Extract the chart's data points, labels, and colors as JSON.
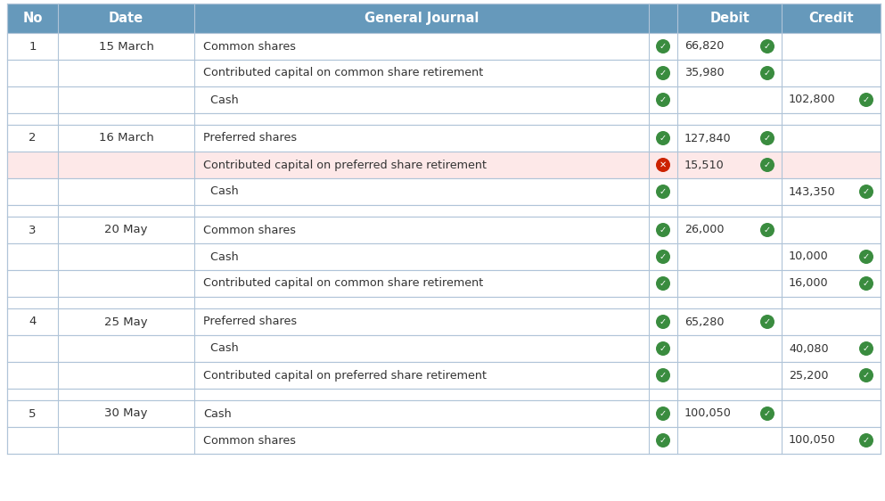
{
  "header_bg": "#6699bb",
  "header_text_color": "#ffffff",
  "row_bg_normal": "#ffffff",
  "row_bg_alt": "#f5f5f5",
  "row_bg_highlighted": "#fde8e8",
  "grid_color": "#b0c4d8",
  "text_color": "#333333",
  "check_green": "#3a8c3f",
  "check_red": "#cc2200",
  "fig_width": 9.93,
  "fig_height": 5.62,
  "dpi": 100,
  "entries": [
    {
      "no": "1",
      "date": "15 March",
      "rows": [
        {
          "desc": "Common shares",
          "icon": "green",
          "debit": "66,820",
          "debit_icon": "green",
          "credit": "",
          "credit_icon": null,
          "highlight": false
        },
        {
          "desc": "Contributed capital on common share retirement",
          "icon": "green",
          "debit": "35,980",
          "debit_icon": "green",
          "credit": "",
          "credit_icon": null,
          "highlight": false
        },
        {
          "desc": "  Cash",
          "icon": "green",
          "debit": "",
          "debit_icon": null,
          "credit": "102,800",
          "credit_icon": "green",
          "highlight": false
        }
      ]
    },
    {
      "no": "2",
      "date": "16 March",
      "rows": [
        {
          "desc": "Preferred shares",
          "icon": "green",
          "debit": "127,840",
          "debit_icon": "green",
          "credit": "",
          "credit_icon": null,
          "highlight": false
        },
        {
          "desc": "Contributed capital on preferred share retirement",
          "icon": "red",
          "debit": "15,510",
          "debit_icon": "green",
          "credit": "",
          "credit_icon": null,
          "highlight": true
        },
        {
          "desc": "  Cash",
          "icon": "green",
          "debit": "",
          "debit_icon": null,
          "credit": "143,350",
          "credit_icon": "green",
          "highlight": false
        }
      ]
    },
    {
      "no": "3",
      "date": "20 May",
      "rows": [
        {
          "desc": "Common shares",
          "icon": "green",
          "debit": "26,000",
          "debit_icon": "green",
          "credit": "",
          "credit_icon": null,
          "highlight": false
        },
        {
          "desc": "  Cash",
          "icon": "green",
          "debit": "",
          "debit_icon": null,
          "credit": "10,000",
          "credit_icon": "green",
          "highlight": false
        },
        {
          "desc": "Contributed capital on common share retirement",
          "icon": "green",
          "debit": "",
          "debit_icon": null,
          "credit": "16,000",
          "credit_icon": "green",
          "highlight": false
        }
      ]
    },
    {
      "no": "4",
      "date": "25 May",
      "rows": [
        {
          "desc": "Preferred shares",
          "icon": "green",
          "debit": "65,280",
          "debit_icon": "green",
          "credit": "",
          "credit_icon": null,
          "highlight": false
        },
        {
          "desc": "  Cash",
          "icon": "green",
          "debit": "",
          "debit_icon": null,
          "credit": "40,080",
          "credit_icon": "green",
          "highlight": false
        },
        {
          "desc": "Contributed capital on preferred share retirement",
          "icon": "green",
          "debit": "",
          "debit_icon": null,
          "credit": "25,200",
          "credit_icon": "green",
          "highlight": false
        }
      ]
    },
    {
      "no": "5",
      "date": "30 May",
      "rows": [
        {
          "desc": "Cash",
          "icon": "green",
          "debit": "100,050",
          "debit_icon": "green",
          "credit": "",
          "credit_icon": null,
          "highlight": false
        },
        {
          "desc": "Common shares",
          "icon": "green",
          "debit": "",
          "debit_icon": null,
          "credit": "100,050",
          "credit_icon": "green",
          "highlight": false
        }
      ]
    }
  ]
}
